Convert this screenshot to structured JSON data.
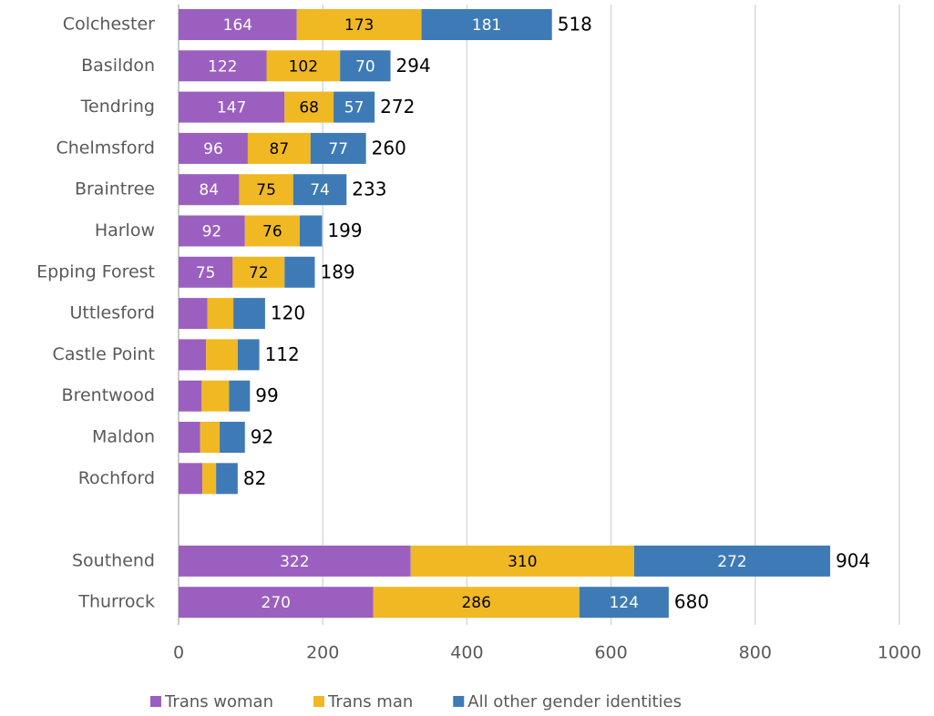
{
  "chart_data": {
    "type": "stacked-barh",
    "categories": [
      "Colchester",
      "Basildon",
      "Tendring",
      "Chelmsford",
      "Braintree",
      "Harlow",
      "Epping Forest",
      "Uttlesford",
      "Castle Point",
      "Brentwood",
      "Maldon",
      "Rochford",
      null,
      "Southend",
      "Thurrock"
    ],
    "series": [
      {
        "name": "Trans woman",
        "color": "#9b5fc0",
        "values": [
          164,
          122,
          147,
          96,
          84,
          92,
          75,
          40,
          38,
          32,
          30,
          33,
          null,
          322,
          270
        ]
      },
      {
        "name": "Trans man",
        "color": "#f0b823",
        "values": [
          173,
          102,
          68,
          87,
          75,
          76,
          72,
          36,
          44,
          38,
          27,
          19,
          null,
          310,
          286
        ]
      },
      {
        "name": "All other gender identities",
        "color": "#3e7bb6",
        "values": [
          181,
          70,
          57,
          77,
          74,
          31,
          42,
          44,
          30,
          29,
          35,
          30,
          null,
          272,
          124
        ]
      }
    ],
    "totals": [
      518,
      294,
      272,
      260,
      233,
      199,
      189,
      120,
      112,
      99,
      92,
      82,
      null,
      904,
      680
    ],
    "xlim": [
      0,
      1000
    ],
    "xticks": [
      0,
      200,
      400,
      600,
      800,
      1000
    ],
    "grid": true,
    "legend": "bottom"
  }
}
